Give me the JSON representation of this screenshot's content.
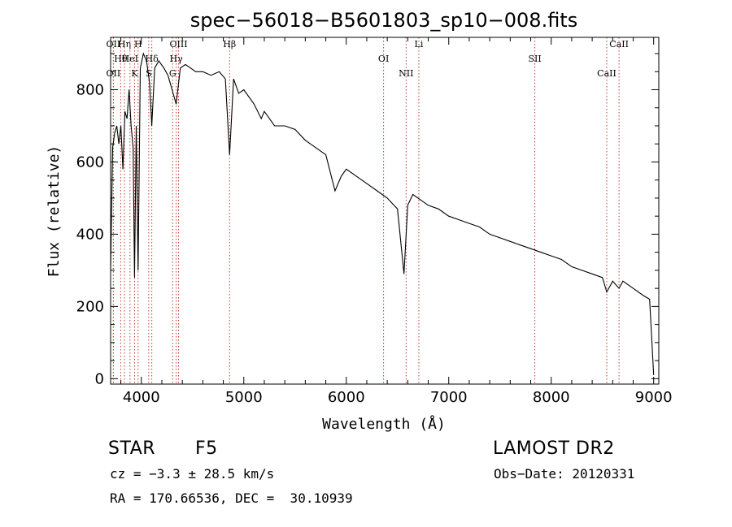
{
  "chart_data": {
    "type": "line",
    "title": "spec−56018−B5601803_sp10−008.fits",
    "xlabel": "Wavelength (Å)",
    "ylabel": "Flux (relative)",
    "xlim": [
      3700,
      9050
    ],
    "ylim": [
      -15,
      945
    ],
    "xticks": [
      4000,
      5000,
      6000,
      7000,
      8000,
      9000
    ],
    "yticks": [
      0,
      200,
      400,
      600,
      800
    ],
    "grid": false,
    "series": [
      {
        "color": "#000000",
        "x": [
          3700,
          3720,
          3740,
          3760,
          3780,
          3800,
          3820,
          3840,
          3860,
          3880,
          3900,
          3920,
          3933,
          3950,
          3968,
          3990,
          4020,
          4050,
          4080,
          4102,
          4130,
          4170,
          4220,
          4260,
          4300,
          4340,
          4380,
          4430,
          4480,
          4530,
          4600,
          4680,
          4760,
          4820,
          4861,
          4900,
          4950,
          5000,
          5100,
          5170,
          5200,
          5300,
          5400,
          5500,
          5600,
          5700,
          5800,
          5890,
          5950,
          6000,
          6100,
          6200,
          6300,
          6400,
          6500,
          6563,
          6600,
          6650,
          6700,
          6800,
          6900,
          7000,
          7100,
          7200,
          7300,
          7400,
          7500,
          7600,
          7700,
          7800,
          7900,
          8000,
          8100,
          8200,
          8300,
          8400,
          8500,
          8542,
          8600,
          8662,
          8700,
          8800,
          8900,
          8960,
          9000
        ],
        "y": [
          300,
          640,
          680,
          700,
          650,
          700,
          580,
          740,
          720,
          800,
          700,
          640,
          280,
          700,
          300,
          860,
          900,
          880,
          820,
          700,
          860,
          880,
          860,
          840,
          800,
          760,
          860,
          870,
          860,
          850,
          850,
          840,
          850,
          830,
          620,
          830,
          790,
          800,
          760,
          720,
          740,
          700,
          700,
          690,
          660,
          640,
          620,
          520,
          560,
          580,
          560,
          540,
          520,
          500,
          470,
          290,
          480,
          510,
          500,
          480,
          470,
          450,
          440,
          430,
          420,
          400,
          390,
          380,
          370,
          360,
          350,
          340,
          330,
          310,
          300,
          290,
          280,
          240,
          270,
          250,
          270,
          250,
          230,
          220,
          10
        ]
      }
    ],
    "line_markers": [
      {
        "label": "OII",
        "wavelength": 3727
      },
      {
        "label": "Hθ",
        "wavelength": 3798
      },
      {
        "label": "OII",
        "wavelength": 3727
      },
      {
        "label": "Hη",
        "wavelength": 3835
      },
      {
        "label": "HeI",
        "wavelength": 3889
      },
      {
        "label": "K",
        "wavelength": 3934
      },
      {
        "label": "H",
        "wavelength": 3968
      },
      {
        "label": "Hδ",
        "wavelength": 4102
      },
      {
        "label": "S",
        "wavelength": 4072
      },
      {
        "label": "OIII",
        "wavelength": 4363
      },
      {
        "label": "Hγ",
        "wavelength": 4340
      },
      {
        "label": "G",
        "wavelength": 4305
      },
      {
        "label": "Hβ",
        "wavelength": 4861
      },
      {
        "label": "OI",
        "wavelength": 6364
      },
      {
        "label": "NII",
        "wavelength": 6584
      },
      {
        "label": "Li",
        "wavelength": 6708
      },
      {
        "label": "SII",
        "wavelength": 7840
      },
      {
        "label": "CaII",
        "wavelength": 8542
      },
      {
        "label": "CaII",
        "wavelength": 8662
      }
    ]
  },
  "info": {
    "object_type": "STAR",
    "subclass": "F5",
    "survey": "LAMOST DR2",
    "cz": "cz = −3.3 ± 28.5 km/s",
    "obs_date": "Obs−Date: 20120331",
    "coords": "RA = 170.66536, DEC =  30.10939"
  }
}
